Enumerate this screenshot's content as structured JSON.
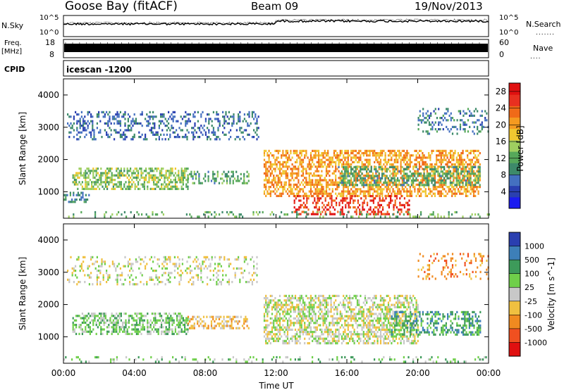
{
  "header": {
    "station": "Goose Bay (fitACF)",
    "beam": "Beam 09",
    "date": "19/Nov/2013"
  },
  "status_panels": {
    "nsky_label": "N.Sky",
    "nsearch_label": "N.Search",
    "freq_label_line1": "Freq.",
    "freq_label_line2": "[MHz]",
    "nave_label": "Nave",
    "cpid_label": "CPID",
    "cpid_text": "icescan -1200",
    "noise_ticks": [
      "10^5",
      "10^0"
    ],
    "freq_ticks": [
      "18",
      "8"
    ],
    "nave_ticks": [
      "60",
      "0"
    ]
  },
  "chart_data": [
    {
      "type": "heatmap",
      "name": "power",
      "xlabel": "",
      "ylabel": "Slant Range [km]",
      "x_ticks": [
        "00:00",
        "04:00",
        "08:00",
        "12:00",
        "16:00",
        "20:00",
        "00:00"
      ],
      "x_range_hours": [
        0,
        24
      ],
      "y_ticks": [
        1000,
        2000,
        3000,
        4000
      ],
      "y_range_km": [
        180,
        4500
      ],
      "colorbar": {
        "label": "Power [dB]",
        "ticks": [
          4,
          8,
          12,
          16,
          20,
          24,
          28
        ],
        "range": [
          0,
          30
        ],
        "colors": [
          "#1b1bf0",
          "#2a3fb0",
          "#4470c0",
          "#3d8a6a",
          "#56a85a",
          "#9fcf60",
          "#f0c830",
          "#f59a20",
          "#f06a18",
          "#e83020",
          "#e01010"
        ]
      },
      "regions": [
        {
          "t": [
            0.2,
            11.0
          ],
          "r": [
            2600,
            3500
          ],
          "level": 6,
          "density": 0.3
        },
        {
          "t": [
            0.5,
            7.0
          ],
          "r": [
            1100,
            1750
          ],
          "level": 14,
          "density": 0.55
        },
        {
          "t": [
            7.0,
            10.5
          ],
          "r": [
            1300,
            1650
          ],
          "level": 11,
          "density": 0.35
        },
        {
          "t": [
            0.0,
            1.5
          ],
          "r": [
            700,
            1000
          ],
          "level": 9,
          "density": 0.4
        },
        {
          "t": [
            11.3,
            23.5
          ],
          "r": [
            900,
            2300
          ],
          "level": 21,
          "density": 0.55
        },
        {
          "t": [
            13.0,
            19.5
          ],
          "r": [
            300,
            900
          ],
          "level": 27,
          "density": 0.4
        },
        {
          "t": [
            15.5,
            23.5
          ],
          "r": [
            1200,
            1800
          ],
          "level": 11,
          "density": 0.45
        },
        {
          "t": [
            20.0,
            24.0
          ],
          "r": [
            2800,
            3600
          ],
          "level": 8,
          "density": 0.25
        },
        {
          "t": [
            0.0,
            24.0
          ],
          "r": [
            200,
            400
          ],
          "level": 12,
          "density": 0.18
        }
      ]
    },
    {
      "type": "heatmap",
      "name": "velocity",
      "xlabel": "Time UT",
      "ylabel": "Slant Range [km]",
      "x_ticks": [
        "00:00",
        "04:00",
        "08:00",
        "12:00",
        "16:00",
        "20:00",
        "00:00"
      ],
      "x_range_hours": [
        0,
        24
      ],
      "y_ticks": [
        1000,
        2000,
        3000,
        4000
      ],
      "y_range_km": [
        180,
        4500
      ],
      "colorbar": {
        "label": "Velocity [m s^-1]",
        "ticks": [
          "1000",
          "500",
          "100",
          "25",
          "-25",
          "-100",
          "-500",
          "-1000"
        ],
        "colors": [
          "#2a3fb0",
          "#3d7fb8",
          "#3d9a5a",
          "#6fcf4a",
          "#c8c8c8",
          "#f0c040",
          "#f08a20",
          "#f05020",
          "#e01010"
        ]
      },
      "regions": [
        {
          "t": [
            0.2,
            11.0
          ],
          "r": [
            2600,
            3500
          ],
          "level": 4,
          "density": 0.22
        },
        {
          "t": [
            0.5,
            7.0
          ],
          "r": [
            1100,
            1750
          ],
          "level": 3,
          "density": 0.5
        },
        {
          "t": [
            7.0,
            10.5
          ],
          "r": [
            1300,
            1650
          ],
          "level": 5,
          "density": 0.45
        },
        {
          "t": [
            11.3,
            20.0
          ],
          "r": [
            800,
            2300
          ],
          "level": 4,
          "density": 0.55
        },
        {
          "t": [
            18.5,
            23.5
          ],
          "r": [
            1100,
            1800
          ],
          "level": 2,
          "density": 0.45
        },
        {
          "t": [
            20.0,
            24.0
          ],
          "r": [
            2800,
            3600
          ],
          "level": 6,
          "density": 0.2
        },
        {
          "t": [
            0.0,
            24.0
          ],
          "r": [
            200,
            400
          ],
          "level": 3,
          "density": 0.15
        }
      ]
    }
  ]
}
